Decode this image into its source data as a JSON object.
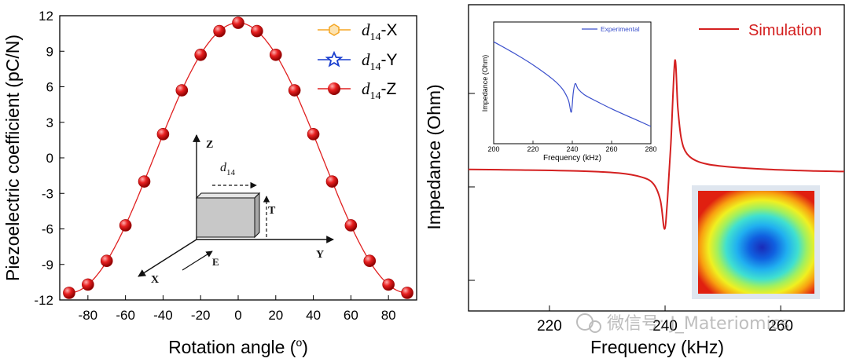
{
  "chart_data": [
    {
      "type": "line",
      "title": "",
      "xlabel": "Rotation angle (o)",
      "xlabel_text": "Rotation angle (",
      "xlabel_sup": "o",
      "xlabel_close": ")",
      "ylabel": "Piezoelectric coefficient (pC/N)",
      "xlim": [
        -95,
        95
      ],
      "ylim": [
        -12,
        12
      ],
      "xticks": [
        -80,
        -60,
        -40,
        -20,
        0,
        20,
        40,
        60,
        80
      ],
      "yticks": [
        12,
        9,
        6,
        3,
        0,
        -3,
        -6,
        -9,
        -12
      ],
      "grid": false,
      "legend_position": "top-right",
      "series": [
        {
          "name": "d14-X",
          "base": "d",
          "sub": "14",
          "suffix": "-X",
          "marker": "hexagon",
          "color": "#f5a623",
          "values": []
        },
        {
          "name": "d14-Y",
          "base": "d",
          "sub": "14",
          "suffix": "-Y",
          "marker": "star",
          "color": "#1a3fcf",
          "values": []
        },
        {
          "name": "d14-Z",
          "base": "d",
          "sub": "14",
          "suffix": "-Z",
          "marker": "ball",
          "color": "#e02020",
          "x": [
            -90,
            -80,
            -70,
            -60,
            -50,
            -40,
            -30,
            -20,
            -10,
            0,
            10,
            20,
            30,
            40,
            50,
            60,
            70,
            80,
            90
          ],
          "values": [
            -11.4,
            -10.7,
            -8.7,
            -5.7,
            -2.0,
            2.0,
            5.7,
            8.7,
            10.7,
            11.4,
            10.7,
            8.7,
            5.7,
            2.0,
            -2.0,
            -5.7,
            -8.7,
            -10.7,
            -11.4
          ]
        }
      ],
      "inset_diagram": {
        "axis_z": "Z",
        "axis_y": "Y",
        "axis_x": "X",
        "coef_base": "d",
        "coef_sub": "14",
        "label_t": "T",
        "label_e": "E"
      }
    },
    {
      "type": "line",
      "title": "",
      "xlabel": "Frequency (kHz)",
      "ylabel": "Impedance (Ohm)",
      "xlim": [
        206,
        271
      ],
      "xticks": [
        220,
        240,
        260
      ],
      "yscale": "log",
      "legend_position": "top-right",
      "series": [
        {
          "name": "Simulation",
          "color": "#d42020",
          "x": [
            206,
            215,
            225,
            232,
            236,
            238,
            239.2,
            239.9,
            240.4,
            241.0,
            241.7,
            242.2,
            242.8,
            243.8,
            246,
            250,
            258,
            266,
            271
          ],
          "values": [
            1.2,
            1.19,
            1.17,
            1.13,
            1.05,
            0.92,
            0.6,
            0.05,
            0.6,
            1.7,
            3.3,
            2.4,
            1.8,
            1.5,
            1.34,
            1.26,
            1.2,
            1.17,
            1.16
          ]
        }
      ],
      "inset_chart": {
        "type": "line",
        "xlabel": "Frequency (kHz)",
        "ylabel": "Impedance (Ohm)",
        "xlim": [
          200,
          280
        ],
        "xticks": [
          200,
          220,
          240,
          260,
          280
        ],
        "legend": "Experimental",
        "color": "#3a4fcc",
        "x": [
          200,
          210,
          220,
          230,
          235,
          238,
          239.5,
          240.5,
          241.5,
          243,
          246,
          250,
          260,
          270,
          280
        ],
        "values": [
          8.7,
          7.7,
          6.6,
          5.3,
          4.4,
          3.4,
          2.3,
          4.1,
          4.9,
          4.4,
          3.9,
          3.5,
          2.6,
          1.8,
          1.0
        ]
      },
      "heatmap_inset": {
        "description": "resonance mode shape"
      }
    }
  ],
  "watermark": "微信号: J_Materiomics"
}
